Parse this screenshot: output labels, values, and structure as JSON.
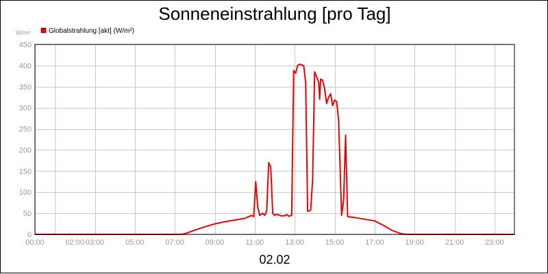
{
  "chart_data": {
    "type": "line",
    "title": "Sonneneinstrahlung [pro Tag]",
    "ylabel": "W/m²",
    "xlabel": "02.02",
    "ylim": [
      0,
      450
    ],
    "xlim": [
      0,
      24
    ],
    "y_ticks": [
      0,
      50,
      100,
      150,
      200,
      250,
      300,
      350,
      400,
      450
    ],
    "x_ticks": [
      {
        "value": 0,
        "label": "00:00"
      },
      {
        "value": 2,
        "label": "02:00"
      },
      {
        "value": 3,
        "label": "03:00"
      },
      {
        "value": 5,
        "label": "05:00"
      },
      {
        "value": 7,
        "label": "07:00"
      },
      {
        "value": 9,
        "label": "09:00"
      },
      {
        "value": 11,
        "label": "11:00"
      },
      {
        "value": 13,
        "label": "13:00"
      },
      {
        "value": 15,
        "label": "15:00"
      },
      {
        "value": 17,
        "label": "17:00"
      },
      {
        "value": 19,
        "label": "19:00"
      },
      {
        "value": 21,
        "label": "21:00"
      },
      {
        "value": 23,
        "label": "23:00"
      }
    ],
    "x_grid": [
      0,
      1,
      3,
      5,
      7,
      9,
      11,
      13,
      15,
      17,
      19,
      21,
      23
    ],
    "grid": true,
    "legend": {
      "position": "top-left"
    },
    "series": [
      {
        "name": "Globalstrahlung [akt] (W/m²)",
        "color": "#ee0000",
        "points": [
          [
            0,
            0
          ],
          [
            7.35,
            0
          ],
          [
            7.6,
            3
          ],
          [
            8,
            10
          ],
          [
            8.5,
            18
          ],
          [
            9,
            25
          ],
          [
            9.5,
            30
          ],
          [
            10,
            34
          ],
          [
            10.5,
            38
          ],
          [
            10.85,
            45
          ],
          [
            10.95,
            42
          ],
          [
            11.05,
            125
          ],
          [
            11.15,
            65
          ],
          [
            11.25,
            45
          ],
          [
            11.4,
            50
          ],
          [
            11.5,
            45
          ],
          [
            11.6,
            55
          ],
          [
            11.7,
            170
          ],
          [
            11.8,
            160
          ],
          [
            11.9,
            50
          ],
          [
            12.0,
            45
          ],
          [
            12.1,
            48
          ],
          [
            12.3,
            44
          ],
          [
            12.5,
            44
          ],
          [
            12.6,
            47
          ],
          [
            12.7,
            43
          ],
          [
            12.85,
            45
          ],
          [
            12.95,
            388
          ],
          [
            13.05,
            382
          ],
          [
            13.15,
            400
          ],
          [
            13.25,
            403
          ],
          [
            13.45,
            400
          ],
          [
            13.55,
            360
          ],
          [
            13.65,
            55
          ],
          [
            13.8,
            57
          ],
          [
            13.9,
            130
          ],
          [
            14.0,
            385
          ],
          [
            14.1,
            373
          ],
          [
            14.2,
            360
          ],
          [
            14.25,
            320
          ],
          [
            14.3,
            368
          ],
          [
            14.4,
            365
          ],
          [
            14.5,
            345
          ],
          [
            14.6,
            310
          ],
          [
            14.7,
            325
          ],
          [
            14.8,
            333
          ],
          [
            14.9,
            305
          ],
          [
            15.0,
            318
          ],
          [
            15.1,
            315
          ],
          [
            15.2,
            270
          ],
          [
            15.35,
            45
          ],
          [
            15.45,
            80
          ],
          [
            15.55,
            235
          ],
          [
            15.65,
            42
          ],
          [
            16,
            40
          ],
          [
            16.5,
            36
          ],
          [
            17,
            32
          ],
          [
            17.5,
            20
          ],
          [
            17.85,
            10
          ],
          [
            18.3,
            2
          ],
          [
            18.6,
            0
          ],
          [
            24,
            0
          ]
        ]
      }
    ]
  }
}
